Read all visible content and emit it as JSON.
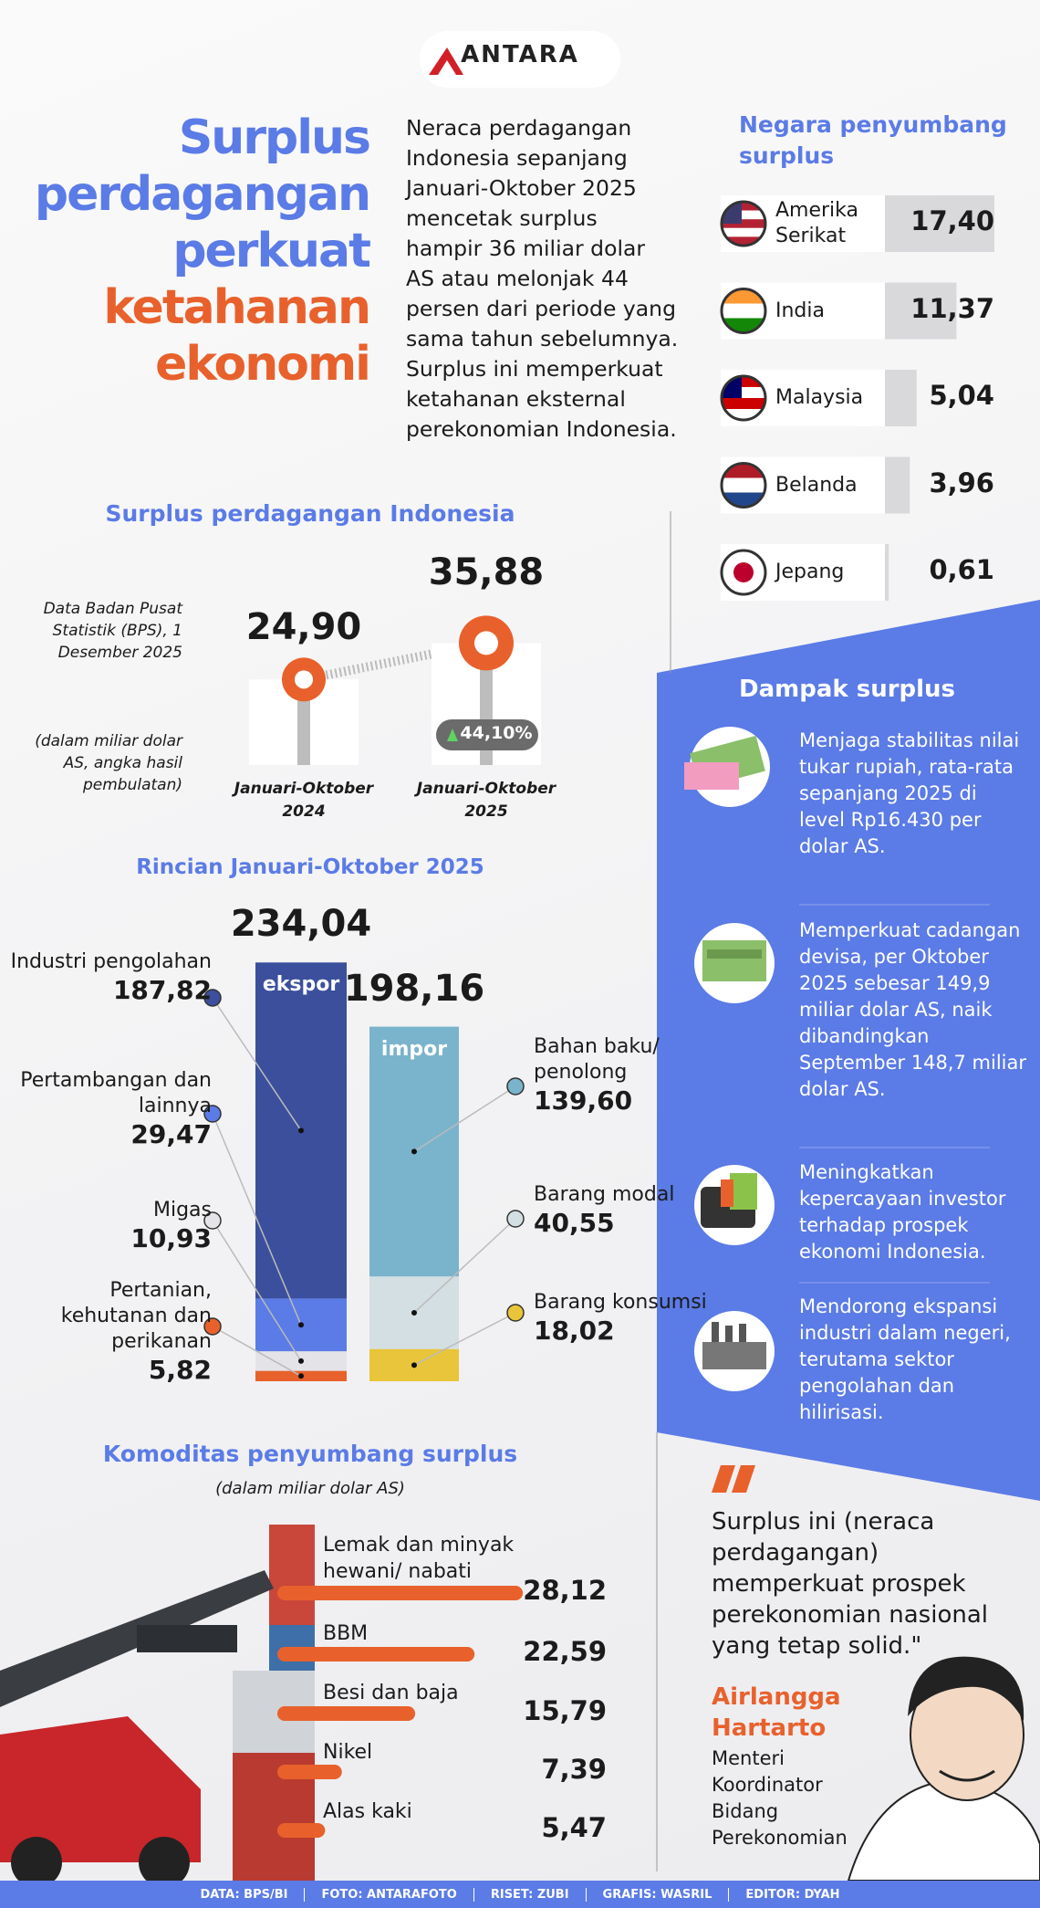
{
  "logo": "ANTARA",
  "headline": [
    "Surplus",
    "perdagangan",
    "perkuat",
    "ketahanan",
    "ekonomi"
  ],
  "intro": "Neraca perdagangan Indonesia sepanjang Januari-Oktober 2025 mencetak surplus hampir 36 miliar dolar AS atau melonjak 44 persen dari periode yang sama tahun sebelumnya. Surplus ini memperkuat ketahanan eksternal perekonomian Indonesia.",
  "chart_data": [
    {
      "type": "rank-bar",
      "title": "Negara penyumbang surplus",
      "categories": [
        "Amerika Serikat",
        "India",
        "Malaysia",
        "Belanda",
        "Jepang"
      ],
      "values": [
        17.4,
        11.37,
        5.04,
        3.96,
        0.61
      ],
      "value_labels": [
        "17,40",
        "11,37",
        "5,04",
        "3,96",
        "0,61"
      ],
      "color": "#d9d9dc"
    },
    {
      "type": "dot-line",
      "title": "Surplus perdagangan Indonesia",
      "notes": [
        "Data Badan Pusat Statistik (BPS), 1 Desember 2025",
        "(dalam miliar dolar AS, angka hasil pembulatan)"
      ],
      "categories": [
        "Januari-Oktober 2024",
        "Januari-Oktober 2025"
      ],
      "values": [
        24.9,
        35.88
      ],
      "value_labels": [
        "24,90",
        "35,88"
      ],
      "annotation": "44,10%",
      "color": "#e8612c"
    },
    {
      "type": "stacked-bar",
      "title": "Rincian Januari-Oktober 2025",
      "categories": [
        "ekspor",
        "impor"
      ],
      "totals": [
        234.04,
        198.16
      ],
      "total_labels": [
        "234,04",
        "198,16"
      ],
      "stacks": [
        {
          "segments": [
            {
              "name": "Industri pengolahan",
              "value": 187.82,
              "value_label": "187,82",
              "color": "#3b4f9c"
            },
            {
              "name": "Pertambangan dan lainnya",
              "value": 29.47,
              "value_label": "29,47",
              "color": "#5b7be6"
            },
            {
              "name": "Migas",
              "value": 10.93,
              "value_label": "10,93",
              "color": "#e4e4e8"
            },
            {
              "name": "Pertanian, kehutanan dan perikanan",
              "value": 5.82,
              "value_label": "5,82",
              "color": "#e8612c"
            }
          ]
        },
        {
          "segments": [
            {
              "name": "Bahan baku/ penolong",
              "value": 139.6,
              "value_label": "139,60",
              "color": "#7ab3cc"
            },
            {
              "name": "Barang modal",
              "value": 40.55,
              "value_label": "40,55",
              "color": "#d3dfe2"
            },
            {
              "name": "Barang konsumsi",
              "value": 18.02,
              "value_label": "18,02",
              "color": "#e8c53a"
            }
          ]
        }
      ]
    },
    {
      "type": "hbar",
      "title": "Komoditas penyumbang surplus",
      "subtitle": "(dalam miliar dolar AS)",
      "categories": [
        "Lemak dan minyak hewani/ nabati",
        "BBM",
        "Besi dan baja",
        "Nikel",
        "Alas kaki"
      ],
      "values": [
        28.12,
        22.59,
        15.79,
        7.39,
        5.47
      ],
      "value_labels": [
        "28,12",
        "22,59",
        "15,79",
        "7,39",
        "5,47"
      ],
      "color": "#e8612c"
    }
  ],
  "impact": {
    "title": "Dampak surplus",
    "items": [
      "Menjaga stabilitas nilai tukar rupiah, rata-rata sepanjang 2025 di level Rp16.430 per dolar AS.",
      "Memperkuat cadangan devisa, per Oktober 2025 sebesar 149,9 miliar dolar AS, naik dibandingkan September 148,7 miliar dolar AS.",
      "Meningkatkan kepercayaan investor terhadap prospek ekonomi Indonesia.",
      "Mendorong ekspansi industri dalam negeri, terutama sektor pengolahan dan hilirisasi."
    ]
  },
  "quote": {
    "text": "Surplus ini (neraca perdagangan) memperkuat prospek perekonomian nasional yang tetap solid.\"",
    "name": "Airlangga Hartarto",
    "role": "Menteri Koordinator Bidang Perekonomian"
  },
  "credits": [
    "DATA: BPS/BI",
    "FOTO: ANTARAFOTO",
    "RISET: ZUBI",
    "GRAFIS: WASRIL",
    "EDITOR: DYAH"
  ]
}
